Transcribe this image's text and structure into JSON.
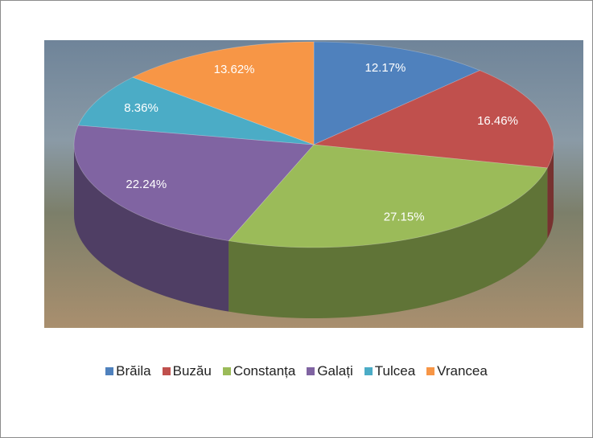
{
  "chart_data": {
    "type": "pie",
    "categories": [
      "Brăila",
      "Buzău",
      "Constanța",
      "Galați",
      "Tulcea",
      "Vrancea"
    ],
    "values": [
      12.17,
      16.46,
      27.15,
      22.24,
      8.36,
      13.62
    ],
    "value_labels": [
      "12.17%",
      "16.46%",
      "27.15%",
      "22.24%",
      "8.36%",
      "13.62%"
    ],
    "colors": [
      "#4f81bd",
      "#c0504d",
      "#9bbb59",
      "#8064a2",
      "#4bacc6",
      "#f79646"
    ],
    "legend": "bottom"
  }
}
